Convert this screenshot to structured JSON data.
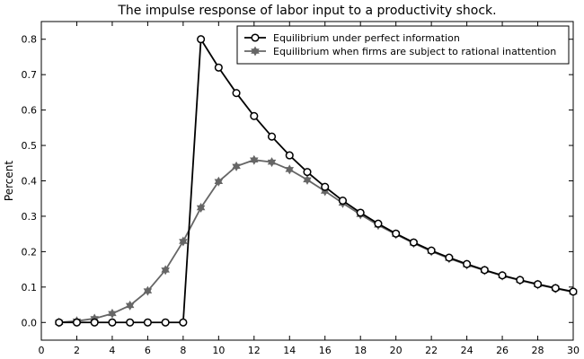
{
  "chart_data": {
    "type": "line",
    "title": "The impulse response of labor input to a productivity shock.",
    "xlabel": "",
    "ylabel": "Percent",
    "xlim": [
      0,
      30
    ],
    "ylim": [
      -0.05,
      0.85
    ],
    "xticks": [
      0,
      2,
      4,
      6,
      8,
      10,
      12,
      14,
      16,
      18,
      20,
      22,
      24,
      26,
      28,
      30
    ],
    "yticks": [
      0.0,
      0.1,
      0.2,
      0.3,
      0.4,
      0.5,
      0.6,
      0.7,
      0.8
    ],
    "grid": false,
    "legend_position": "top-right",
    "series": [
      {
        "name": "Equilibrium under perfect information",
        "color": "#000000",
        "marker": "open-circle",
        "x": [
          1,
          2,
          3,
          4,
          5,
          6,
          7,
          8,
          9,
          10,
          11,
          12,
          13,
          14,
          15,
          16,
          17,
          18,
          19,
          20,
          21,
          22,
          23,
          24,
          25,
          26,
          27,
          28,
          29,
          30
        ],
        "values": [
          0.0,
          0.0,
          0.0,
          0.0,
          0.0,
          0.0,
          0.0,
          0.0,
          0.8,
          0.72,
          0.648,
          0.583,
          0.525,
          0.472,
          0.425,
          0.383,
          0.344,
          0.31,
          0.279,
          0.251,
          0.226,
          0.203,
          0.183,
          0.165,
          0.148,
          0.133,
          0.12,
          0.108,
          0.097,
          0.087
        ]
      },
      {
        "name": "Equilibrium when firms are subject to rational inattention",
        "color": "#666666",
        "marker": "filled-star",
        "x": [
          1,
          2,
          3,
          4,
          5,
          6,
          7,
          8,
          9,
          10,
          11,
          12,
          13,
          14,
          15,
          16,
          17,
          18,
          19,
          20,
          21,
          22,
          23,
          24,
          25,
          26,
          27,
          28,
          29,
          30
        ],
        "values": [
          0.0,
          0.004,
          0.011,
          0.025,
          0.048,
          0.089,
          0.148,
          0.229,
          0.324,
          0.398,
          0.441,
          0.459,
          0.453,
          0.432,
          0.403,
          0.371,
          0.337,
          0.305,
          0.275,
          0.249,
          0.224,
          0.201,
          0.181,
          0.163,
          0.147,
          0.132,
          0.119,
          0.107,
          0.096,
          0.086
        ]
      }
    ]
  }
}
